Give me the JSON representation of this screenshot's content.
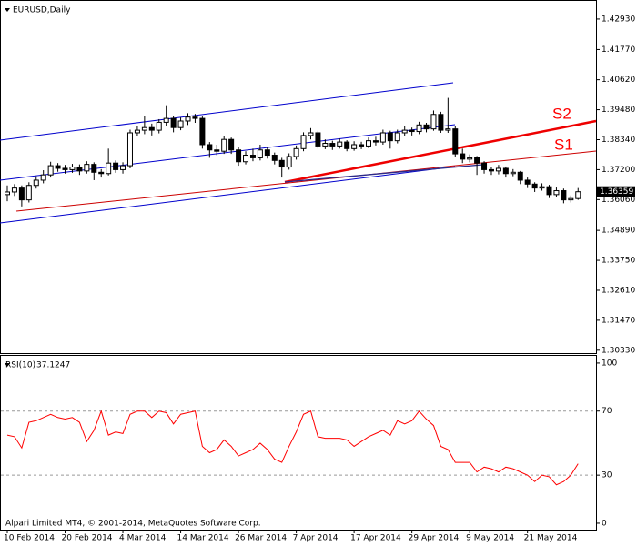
{
  "chart_data": [
    {
      "type": "candlestick",
      "title": "EURUSD,Daily",
      "footer": "Alpari Limited MT4, © 2001-2014, MetaQuotes Software Corp.",
      "categories": [
        "10 Feb 2014",
        null,
        null,
        null,
        null,
        null,
        null,
        null,
        "20 Feb 2014",
        null,
        null,
        null,
        null,
        null,
        null,
        null,
        "4 Mar 2014",
        null,
        null,
        null,
        null,
        null,
        null,
        null,
        "14 Mar 2014",
        null,
        null,
        null,
        null,
        null,
        null,
        null,
        "26 Mar 2014",
        null,
        null,
        null,
        null,
        null,
        null,
        null,
        "7 Apr 2014",
        null,
        null,
        null,
        null,
        null,
        null,
        null,
        "17 Apr 2014",
        null,
        null,
        null,
        null,
        null,
        null,
        null,
        "29 Apr 2014",
        null,
        null,
        null,
        null,
        null,
        null,
        null,
        "9 May 2014",
        null,
        null,
        null,
        null,
        null,
        null,
        null,
        "21 May 2014",
        null,
        null,
        null,
        null,
        null,
        null,
        null
      ],
      "open": [
        1.3625,
        1.3635,
        1.365,
        1.3605,
        1.366,
        1.368,
        1.37,
        1.3735,
        1.3725,
        1.372,
        1.373,
        1.3715,
        1.374,
        1.371,
        1.3705,
        1.3745,
        1.372,
        1.3735,
        1.386,
        1.387,
        1.388,
        1.387,
        1.39,
        1.3915,
        1.388,
        1.3905,
        1.392,
        1.3915,
        1.3815,
        1.3795,
        1.379,
        1.3835,
        1.3795,
        1.375,
        1.3775,
        1.3765,
        1.3795,
        1.3775,
        1.3755,
        1.373,
        1.377,
        1.38,
        1.385,
        1.386,
        1.381,
        1.382,
        1.381,
        1.3825,
        1.38,
        1.3815,
        1.381,
        1.383,
        1.3825,
        1.386,
        1.383,
        1.386,
        1.387,
        1.3865,
        1.389,
        1.3875,
        1.393,
        1.387,
        1.3875,
        1.378,
        1.376,
        1.3765,
        1.3745,
        1.372,
        1.3715,
        1.3725,
        1.3705,
        1.371,
        1.368,
        1.3665,
        1.365,
        1.3655,
        1.3625,
        1.364,
        1.3605,
        1.361
      ],
      "high": [
        1.366,
        1.3665,
        1.366,
        1.3672,
        1.3695,
        1.3718,
        1.375,
        1.3745,
        1.3738,
        1.3742,
        1.374,
        1.3752,
        1.3748,
        1.3722,
        1.38,
        1.3755,
        1.3748,
        1.3872,
        1.3885,
        1.3925,
        1.3895,
        1.3912,
        1.3965,
        1.3925,
        1.3918,
        1.3935,
        1.3932,
        1.3922,
        1.3825,
        1.3815,
        1.3848,
        1.3842,
        1.3805,
        1.379,
        1.38,
        1.3815,
        1.3808,
        1.3785,
        1.3765,
        1.3782,
        1.3812,
        1.3862,
        1.3878,
        1.3868,
        1.3835,
        1.383,
        1.3838,
        1.3832,
        1.3828,
        1.3826,
        1.3842,
        1.3845,
        1.3872,
        1.3868,
        1.3872,
        1.3885,
        1.388,
        1.3902,
        1.3898,
        1.3945,
        1.394,
        1.3993,
        1.3885,
        1.38,
        1.3778,
        1.3772,
        1.3752,
        1.373,
        1.3738,
        1.3732,
        1.3722,
        1.3715,
        1.369,
        1.3672,
        1.3668,
        1.3662,
        1.3652,
        1.3648,
        1.3622,
        1.365
      ],
      "low": [
        1.36,
        1.362,
        1.358,
        1.3595,
        1.3648,
        1.3668,
        1.369,
        1.3712,
        1.3705,
        1.3708,
        1.37,
        1.3705,
        1.368,
        1.369,
        1.3698,
        1.3708,
        1.3705,
        1.3725,
        1.3848,
        1.3855,
        1.385,
        1.3858,
        1.3885,
        1.3862,
        1.387,
        1.389,
        1.3898,
        1.38,
        1.3765,
        1.3775,
        1.378,
        1.378,
        1.3735,
        1.374,
        1.3752,
        1.3755,
        1.3762,
        1.374,
        1.369,
        1.372,
        1.3758,
        1.379,
        1.3835,
        1.38,
        1.3798,
        1.3795,
        1.38,
        1.379,
        1.3792,
        1.3798,
        1.3802,
        1.3812,
        1.3815,
        1.38,
        1.382,
        1.3848,
        1.385,
        1.3855,
        1.3862,
        1.3868,
        1.386,
        1.386,
        1.377,
        1.3745,
        1.3748,
        1.37,
        1.3705,
        1.37,
        1.3702,
        1.369,
        1.3695,
        1.3665,
        1.365,
        1.3635,
        1.364,
        1.3612,
        1.3615,
        1.3592,
        1.3595,
        1.3605
      ],
      "close": [
        1.3635,
        1.365,
        1.3605,
        1.366,
        1.368,
        1.37,
        1.3735,
        1.3725,
        1.372,
        1.373,
        1.3715,
        1.374,
        1.371,
        1.3705,
        1.3745,
        1.372,
        1.3735,
        1.386,
        1.387,
        1.388,
        1.387,
        1.39,
        1.3915,
        1.388,
        1.3905,
        1.392,
        1.3915,
        1.3815,
        1.3795,
        1.379,
        1.3835,
        1.3795,
        1.375,
        1.3775,
        1.3765,
        1.3795,
        1.3775,
        1.3755,
        1.373,
        1.377,
        1.38,
        1.385,
        1.386,
        1.381,
        1.382,
        1.381,
        1.3825,
        1.38,
        1.3815,
        1.381,
        1.383,
        1.3825,
        1.386,
        1.383,
        1.386,
        1.387,
        1.3865,
        1.389,
        1.3875,
        1.393,
        1.387,
        1.3875,
        1.378,
        1.376,
        1.3765,
        1.3745,
        1.372,
        1.3715,
        1.3725,
        1.3705,
        1.371,
        1.368,
        1.3665,
        1.365,
        1.3655,
        1.3625,
        1.364,
        1.3605,
        1.361,
        1.36359
      ],
      "ylim": [
        1.3022,
        1.4362
      ],
      "yticks": [
        {
          "value": 1.4293,
          "label": "1.42930"
        },
        {
          "value": 1.4177,
          "label": "1.41770"
        },
        {
          "value": 1.4062,
          "label": "1.40620"
        },
        {
          "value": 1.3948,
          "label": "1.39480"
        },
        {
          "value": 1.3834,
          "label": "1.38340"
        },
        {
          "value": 1.372,
          "label": "1.37200"
        },
        {
          "value": 1.3606,
          "label": "1.36060"
        },
        {
          "value": 1.3489,
          "label": "1.34890"
        },
        {
          "value": 1.3375,
          "label": "1.33750"
        },
        {
          "value": 1.3261,
          "label": "1.32610"
        },
        {
          "value": 1.3147,
          "label": "1.31470"
        },
        {
          "value": 1.3033,
          "label": "1.30330"
        }
      ],
      "annotations": [
        "S2",
        "S1"
      ]
    },
    {
      "type": "line",
      "title": "RSI(10)",
      "color": "#ff0000",
      "values": [
        55,
        54,
        47,
        63,
        64,
        66,
        68,
        66,
        65,
        66,
        63,
        51,
        58,
        70,
        55,
        57,
        56,
        68,
        70,
        70,
        66,
        70,
        69,
        62,
        68,
        69,
        70,
        48,
        44,
        46,
        52,
        48,
        42,
        44,
        46,
        50,
        46,
        40,
        38,
        48,
        57,
        68,
        70,
        54,
        53,
        53,
        53,
        52,
        48,
        51,
        54,
        56,
        58,
        55,
        64,
        62,
        64,
        70,
        65,
        61,
        48,
        46,
        38,
        38,
        38,
        32,
        35,
        34,
        32,
        35,
        34,
        32,
        30,
        26,
        30,
        29,
        24,
        26,
        30,
        37.1247
      ],
      "ylim": [
        -4,
        104.5
      ],
      "yticks": [
        100,
        70,
        30,
        0
      ]
    }
  ]
}
